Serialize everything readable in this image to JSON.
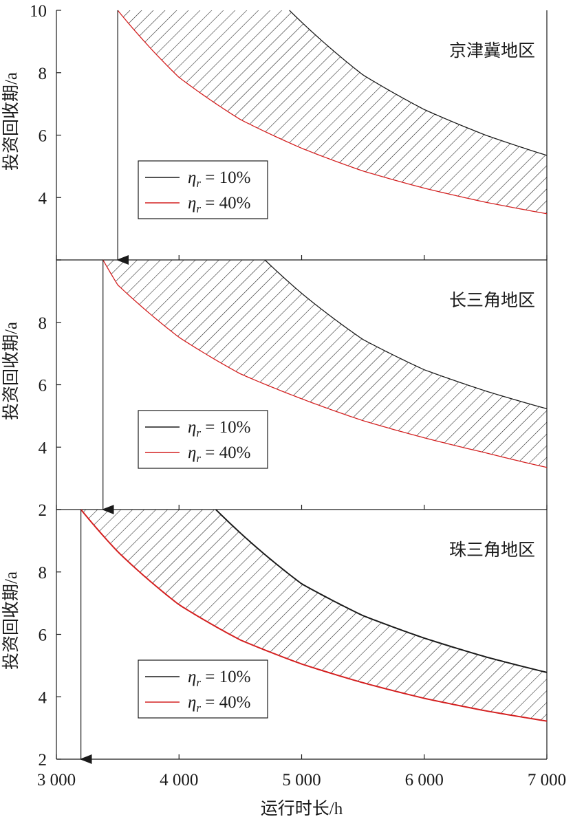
{
  "chart_data": {
    "type": "area",
    "xlabel": "运行时长/h",
    "xlim": [
      3000,
      7000
    ],
    "xticks": [
      3000,
      4000,
      5000,
      6000,
      7000
    ],
    "xtick_labels": [
      "3 000",
      "4 000",
      "5 000",
      "6 000",
      "7 000"
    ],
    "grid": false,
    "legend_position": "lower-left",
    "colors": {
      "eta10": "#1a1a1a",
      "eta40": "#d42020"
    },
    "panels": [
      {
        "region": "京津冀地区",
        "ylabel": "投资回收期/a",
        "ylim": [
          2,
          10
        ],
        "yticks": [
          2,
          4,
          6,
          8,
          10
        ],
        "ytick_labels": [
          "",
          "4",
          "6",
          "8",
          "10"
        ],
        "shaded_between": true,
        "annotation_arrow_x": 3500,
        "series": [
          {
            "name": "η_r = 10%",
            "color": "#1a1a1a",
            "x": [
              4900,
              5000,
              5500,
              6000,
              6500,
              7000
            ],
            "y": [
              10.0,
              9.62,
              7.93,
              6.82,
              6.0,
              5.35
            ]
          },
          {
            "name": "η_r = 40%",
            "color": "#d42020",
            "x": [
              3500,
              4000,
              4500,
              5000,
              5500,
              6000,
              6500,
              7000
            ],
            "y": [
              10.0,
              7.85,
              6.5,
              5.58,
              4.85,
              4.3,
              3.85,
              3.48
            ]
          }
        ]
      },
      {
        "region": "长三角地区",
        "ylabel": "投资回收期/a",
        "ylim": [
          2,
          10
        ],
        "yticks": [
          2,
          4,
          6,
          8,
          10
        ],
        "ytick_labels": [
          "2",
          "4",
          "6",
          "8",
          ""
        ],
        "shaded_between": true,
        "annotation_arrow_x": 3380,
        "series": [
          {
            "name": "η_r = 10%",
            "color": "#1a1a1a",
            "x": [
              4700,
              5000,
              5500,
              6000,
              6500,
              7000
            ],
            "y": [
              10.0,
              8.93,
              7.45,
              6.48,
              5.8,
              5.23
            ]
          },
          {
            "name": "η_r = 40%",
            "color": "#d42020",
            "x": [
              3380,
              3500,
              4000,
              4500,
              5000,
              5500,
              6000,
              6500,
              7000
            ],
            "y": [
              10.0,
              9.2,
              7.52,
              6.35,
              5.55,
              4.85,
              4.3,
              3.82,
              3.35
            ]
          }
        ]
      },
      {
        "region": "珠三角地区",
        "ylabel": "投资回收期/a",
        "ylim": [
          2,
          10
        ],
        "yticks": [
          2,
          4,
          6,
          8,
          10
        ],
        "ytick_labels": [
          "2",
          "4",
          "6",
          "8",
          ""
        ],
        "shaded_between": true,
        "annotation_arrow_x": 3200,
        "series": [
          {
            "name": "η_r = 10%",
            "color": "#1a1a1a",
            "x": [
              4300,
              4500,
              5000,
              5500,
              6000,
              6500,
              7000
            ],
            "y": [
              10.0,
              9.25,
              7.62,
              6.6,
              5.88,
              5.28,
              4.78
            ]
          },
          {
            "name": "η_r = 40%",
            "color": "#d42020",
            "x": [
              3200,
              3500,
              4000,
              4500,
              5000,
              5500,
              6000,
              6500,
              7000
            ],
            "y": [
              10.0,
              8.65,
              6.95,
              5.82,
              5.05,
              4.45,
              3.95,
              3.55,
              3.22
            ]
          }
        ]
      }
    ],
    "legend": [
      {
        "symbol": "η",
        "subscript": "r",
        "rest": " = 10%",
        "color": "#1a1a1a"
      },
      {
        "symbol": "η",
        "subscript": "r",
        "rest": " = 40%",
        "color": "#d42020"
      }
    ]
  }
}
